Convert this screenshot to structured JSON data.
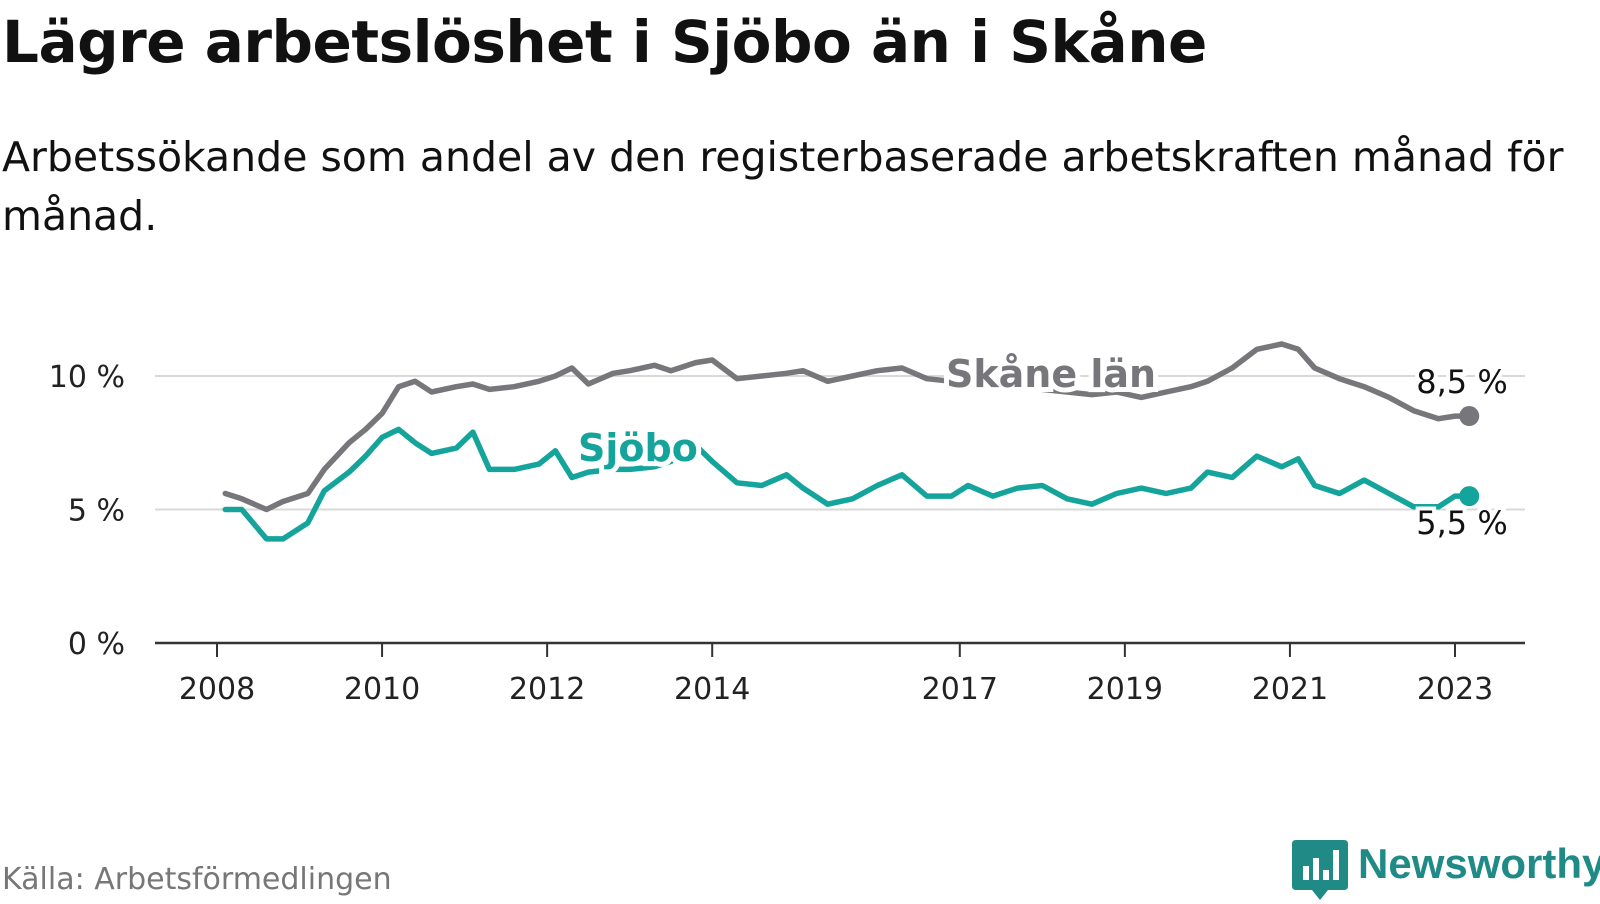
{
  "title": "Lägre arbetslöshet i Sjöbo än i Skåne",
  "subtitle": "Arbetssökande som andel av den registerbaserade arbetskraften månad för månad.",
  "source": "Källa: Arbetsförmedlingen",
  "brand": "Newsworthy",
  "colors": {
    "skane": "#77767b",
    "sjobo": "#14a49b",
    "grid": "#d9d9d9",
    "axis": "#333333",
    "brand": "#1f8a86"
  },
  "chart_data": {
    "type": "line",
    "title": "Lägre arbetslöshet i Sjöbo än i Skåne",
    "xlabel": "",
    "ylabel": "",
    "ylim": [
      0,
      10
    ],
    "xlim": [
      2008,
      2023.4
    ],
    "yticks": [
      0,
      5,
      10
    ],
    "ytick_labels": [
      "0 %",
      "5 %",
      "10 %"
    ],
    "xticks": [
      2008,
      2010,
      2012,
      2014,
      2017,
      2019,
      2021,
      2023
    ],
    "xtick_labels": [
      "2008",
      "2010",
      "2012",
      "2014",
      "2017",
      "2019",
      "2021",
      "2023"
    ],
    "x": [
      2008.1,
      2008.3,
      2008.6,
      2008.8,
      2009.1,
      2009.3,
      2009.6,
      2009.8,
      2010.0,
      2010.2,
      2010.4,
      2010.6,
      2010.9,
      2011.1,
      2011.3,
      2011.6,
      2011.9,
      2012.1,
      2012.3,
      2012.5,
      2012.8,
      2013.0,
      2013.3,
      2013.5,
      2013.8,
      2014.0,
      2014.3,
      2014.6,
      2014.9,
      2015.1,
      2015.4,
      2015.7,
      2016.0,
      2016.3,
      2016.6,
      2016.9,
      2017.1,
      2017.4,
      2017.7,
      2018.0,
      2018.3,
      2018.6,
      2018.9,
      2019.2,
      2019.5,
      2019.8,
      2020.0,
      2020.3,
      2020.6,
      2020.9,
      2021.1,
      2021.3,
      2021.6,
      2021.9,
      2022.2,
      2022.5,
      2022.8,
      2023.0,
      2023.1
    ],
    "series": [
      {
        "name": "Skåne län",
        "end_label": "8,5 %",
        "values": [
          5.6,
          5.4,
          5.0,
          5.3,
          5.6,
          6.5,
          7.5,
          8.0,
          8.6,
          9.6,
          9.8,
          9.4,
          9.6,
          9.7,
          9.5,
          9.6,
          9.8,
          10.0,
          10.3,
          9.7,
          10.1,
          10.2,
          10.4,
          10.2,
          10.5,
          10.6,
          9.9,
          10.0,
          10.1,
          10.2,
          9.8,
          10.0,
          10.2,
          10.3,
          9.9,
          9.8,
          9.7,
          9.6,
          9.6,
          9.5,
          9.4,
          9.3,
          9.4,
          9.2,
          9.4,
          9.6,
          9.8,
          10.3,
          11.0,
          11.2,
          11.0,
          10.3,
          9.9,
          9.6,
          9.2,
          8.7,
          8.4,
          8.5,
          8.5
        ]
      },
      {
        "name": "Sjöbo",
        "end_label": "5,5 %",
        "values": [
          5.0,
          5.0,
          3.9,
          3.9,
          4.5,
          5.7,
          6.4,
          7.0,
          7.7,
          8.0,
          7.5,
          7.1,
          7.3,
          7.9,
          6.5,
          6.5,
          6.7,
          7.2,
          6.2,
          6.4,
          6.5,
          6.5,
          6.6,
          6.8,
          7.4,
          6.8,
          6.0,
          5.9,
          6.3,
          5.8,
          5.2,
          5.4,
          5.9,
          6.3,
          5.5,
          5.5,
          5.9,
          5.5,
          5.8,
          5.9,
          5.4,
          5.2,
          5.6,
          5.8,
          5.6,
          5.8,
          6.4,
          6.2,
          7.0,
          6.6,
          6.9,
          5.9,
          5.6,
          6.1,
          5.6,
          5.1,
          5.1,
          5.5,
          5.5
        ]
      }
    ]
  }
}
